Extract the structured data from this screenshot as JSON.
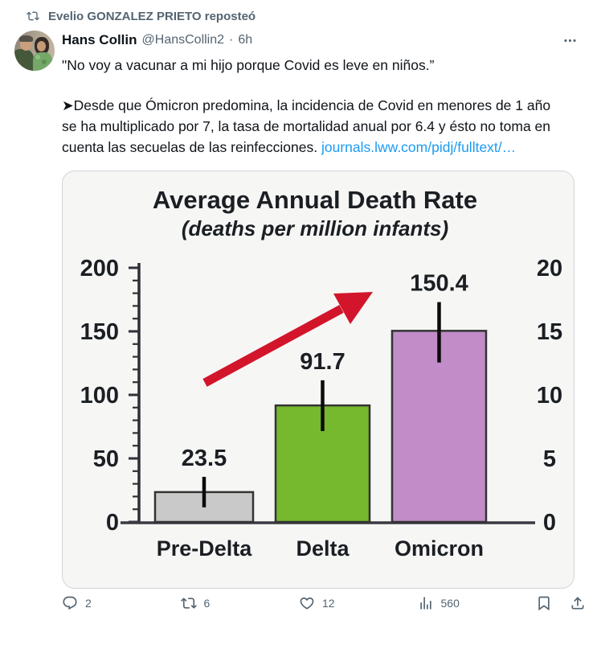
{
  "banner": {
    "text": "Evelio GONZALEZ PRIETO reposteó"
  },
  "tweet": {
    "author": "Hans Collin",
    "handle": "@HansCollin2",
    "separator": "·",
    "time": "6h",
    "paragraph1": "\"No voy a vacunar a mi hijo porque Covid es leve en niños.”",
    "paragraph2": "➤Desde que Ómicron predomina, la incidencia de Covid en menores de 1 año se ha multiplicado por 7, la tasa de mortalidad anual por 6.4 y ésto no toma en cuenta las secuelas de las reinfecciones. ",
    "link_part1": "journals.lww.com",
    "link_part2": "/pidj/fulltext/…"
  },
  "chart_data": {
    "type": "bar",
    "title": "Average Annual Death Rate",
    "subtitle": "(deaths per million infants)",
    "categories": [
      "Pre-Delta",
      "Delta",
      "Omicron"
    ],
    "values": [
      23.5,
      91.7,
      150.4
    ],
    "value_labels": [
      "23.5",
      "91.7",
      "150.4"
    ],
    "error_low": [
      11.5,
      71.5,
      125.5
    ],
    "error_high": [
      35.5,
      111.5,
      173.0
    ],
    "bar_colors": [
      "#c9c9c9",
      "#76b82e",
      "#c18cc8"
    ],
    "bar_border": "#333333",
    "xlabel": "",
    "ylabel": "",
    "left_axis": {
      "ticks": [
        0,
        50,
        100,
        150,
        200
      ],
      "minor_step": 10,
      "ylim": [
        0,
        200
      ]
    },
    "right_axis": {
      "ticks": [
        0,
        5,
        10,
        15,
        20
      ],
      "ylim": [
        0,
        20
      ]
    },
    "grid": false,
    "legend": false,
    "annotation_arrow": {
      "color": "#d2152b",
      "meaning": "increase-trend-arrow"
    },
    "text_color": "#1b1f23"
  },
  "actions": {
    "reply_count": "2",
    "repost_count": "6",
    "like_count": "12",
    "view_count": "560"
  },
  "colors": {
    "accent_blue": "#1d9bf0",
    "muted_gray": "#536471",
    "text_dark": "#0f1419",
    "card_border": "#cfd7db",
    "card_bg": "#f6f6f5"
  }
}
